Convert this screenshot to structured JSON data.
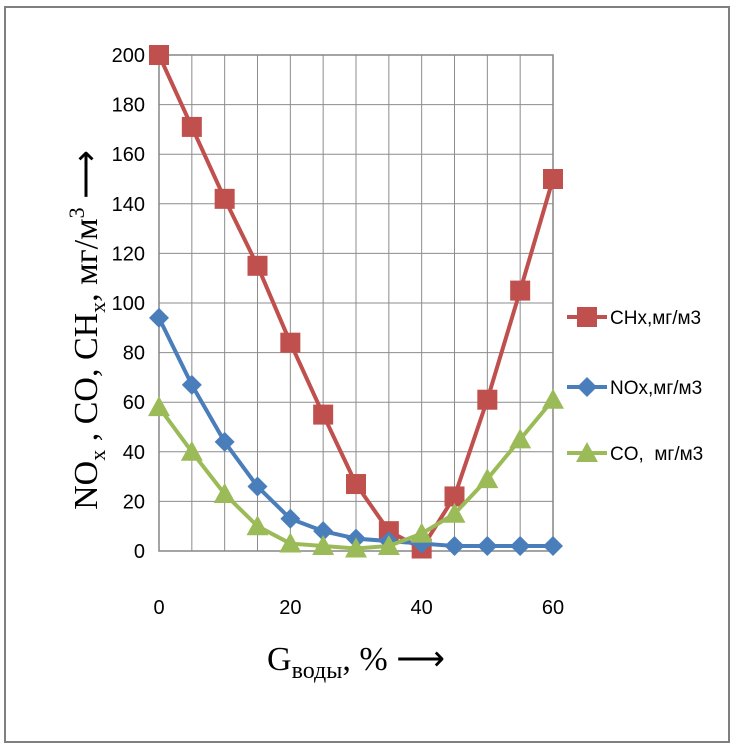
{
  "chart_data": {
    "type": "line",
    "x": [
      0,
      5,
      10,
      15,
      20,
      25,
      30,
      35,
      40,
      45,
      50,
      55,
      60
    ],
    "xlim": [
      0,
      60
    ],
    "ylim": [
      0,
      200
    ],
    "xticks": [
      "0",
      "20",
      "40",
      "60"
    ],
    "yticks": [
      "0",
      "20",
      "40",
      "60",
      "80",
      "100",
      "120",
      "140",
      "160",
      "180",
      "200"
    ],
    "grid": true,
    "legend_position": "right",
    "xlabel": {
      "main": "G",
      "sub": "воды",
      "tail": ", % ⟶"
    },
    "ylabel": {
      "p1": "NO",
      "s1": "x",
      "p2": " , CO, CH",
      "s2": "x",
      "p3": ", мг/м",
      "sup": "3",
      "p4": " ⟶"
    },
    "series": [
      {
        "name": "CHx,мг/м3",
        "color": "#c0504d",
        "marker": "square",
        "values": [
          200,
          171,
          142,
          115,
          84,
          55,
          27,
          8,
          1,
          22,
          61,
          105,
          150
        ]
      },
      {
        "name": "NOx,мг/м3",
        "color": "#4a7ebb",
        "marker": "diamond",
        "values": [
          94,
          67,
          44,
          26,
          13,
          8,
          5,
          4,
          3,
          2,
          2,
          2,
          2
        ]
      },
      {
        "name": "CO,  мг/м3",
        "color": "#9bbb59",
        "marker": "triangle",
        "values": [
          58,
          40,
          23,
          10,
          3,
          2,
          1,
          2,
          7,
          15,
          29,
          45,
          61
        ]
      }
    ]
  }
}
